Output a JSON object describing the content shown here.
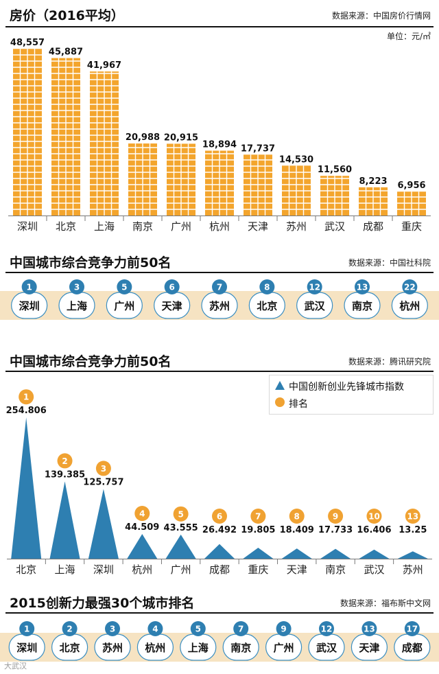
{
  "section1": {
    "title": "房价（2016平均）",
    "source": "数据来源：中国房价行情网",
    "unit": "单位：元/㎡"
  },
  "section2": {
    "title": "中国城市综合竞争力前50名",
    "source": "数据来源：中国社科院",
    "items": [
      {
        "rank": "1",
        "city": "深圳"
      },
      {
        "rank": "3",
        "city": "上海"
      },
      {
        "rank": "5",
        "city": "广州"
      },
      {
        "rank": "6",
        "city": "天津"
      },
      {
        "rank": "7",
        "city": "苏州"
      },
      {
        "rank": "8",
        "city": "北京"
      },
      {
        "rank": "12",
        "city": "武汉"
      },
      {
        "rank": "13",
        "city": "南京"
      },
      {
        "rank": "22",
        "city": "杭州"
      }
    ]
  },
  "section3": {
    "title": "中国城市综合竞争力前50名",
    "source": "数据来源：腾讯研究院",
    "legend": {
      "index_label": "中国创新创业先锋城市指数",
      "rank_label": "排名"
    }
  },
  "section4": {
    "title": "2015创新力最强30个城市排名",
    "source": "数据来源：福布斯中文网",
    "items": [
      {
        "rank": "1",
        "city": "深圳"
      },
      {
        "rank": "2",
        "city": "北京"
      },
      {
        "rank": "3",
        "city": "苏州"
      },
      {
        "rank": "4",
        "city": "杭州"
      },
      {
        "rank": "5",
        "city": "上海"
      },
      {
        "rank": "7",
        "city": "南京"
      },
      {
        "rank": "9",
        "city": "广州"
      },
      {
        "rank": "12",
        "city": "武汉"
      },
      {
        "rank": "13",
        "city": "天津"
      },
      {
        "rank": "17",
        "city": "成都"
      }
    ]
  },
  "watermark": "大武汉",
  "colors": {
    "bar": "#f3a52d",
    "bar_grid": "#ffffff",
    "accent": "#f0a232",
    "triangle": "#2e7fb1",
    "band": "#f6e3c2",
    "pill": "#ffffff",
    "pill_border": "#3b8ec1"
  },
  "chart_data": [
    {
      "type": "bar",
      "title": "房价（2016平均）",
      "ylabel": "单位：元/㎡",
      "categories": [
        "深圳",
        "北京",
        "上海",
        "南京",
        "广州",
        "杭州",
        "天津",
        "苏州",
        "武汉",
        "成都",
        "重庆"
      ],
      "values": [
        48557,
        45887,
        41967,
        20988,
        20915,
        18894,
        17737,
        14530,
        11560,
        8223,
        6956
      ],
      "labels": [
        "48,557",
        "45,887",
        "41,967",
        "20,988",
        "20,915",
        "18,894",
        "17,737",
        "14,530",
        "11,560",
        "8,223",
        "6,956"
      ],
      "ylim": [
        0,
        50000
      ]
    },
    {
      "type": "bar",
      "title": "中国城市综合竞争力前50名",
      "series": [
        {
          "name": "中国创新创业先锋城市指数",
          "values": [
            254.806,
            139.385,
            125.757,
            44.509,
            43.555,
            26.492,
            19.805,
            18.409,
            17.733,
            16.406,
            13.25
          ]
        },
        {
          "name": "排名",
          "values": [
            1,
            2,
            3,
            4,
            5,
            6,
            7,
            8,
            9,
            10,
            13
          ]
        }
      ],
      "categories": [
        "北京",
        "上海",
        "深圳",
        "杭州",
        "广州",
        "成都",
        "重庆",
        "天津",
        "南京",
        "武汉",
        "苏州"
      ],
      "labels": [
        "254.806",
        "139.385",
        "125.757",
        "44.509",
        "43.555",
        "26.492",
        "19.805",
        "18.409",
        "17.733",
        "16.406",
        "13.25"
      ],
      "ranks": [
        "1",
        "2",
        "3",
        "4",
        "5",
        "6",
        "7",
        "8",
        "9",
        "10",
        "13"
      ],
      "ylim": [
        0,
        260
      ]
    }
  ]
}
